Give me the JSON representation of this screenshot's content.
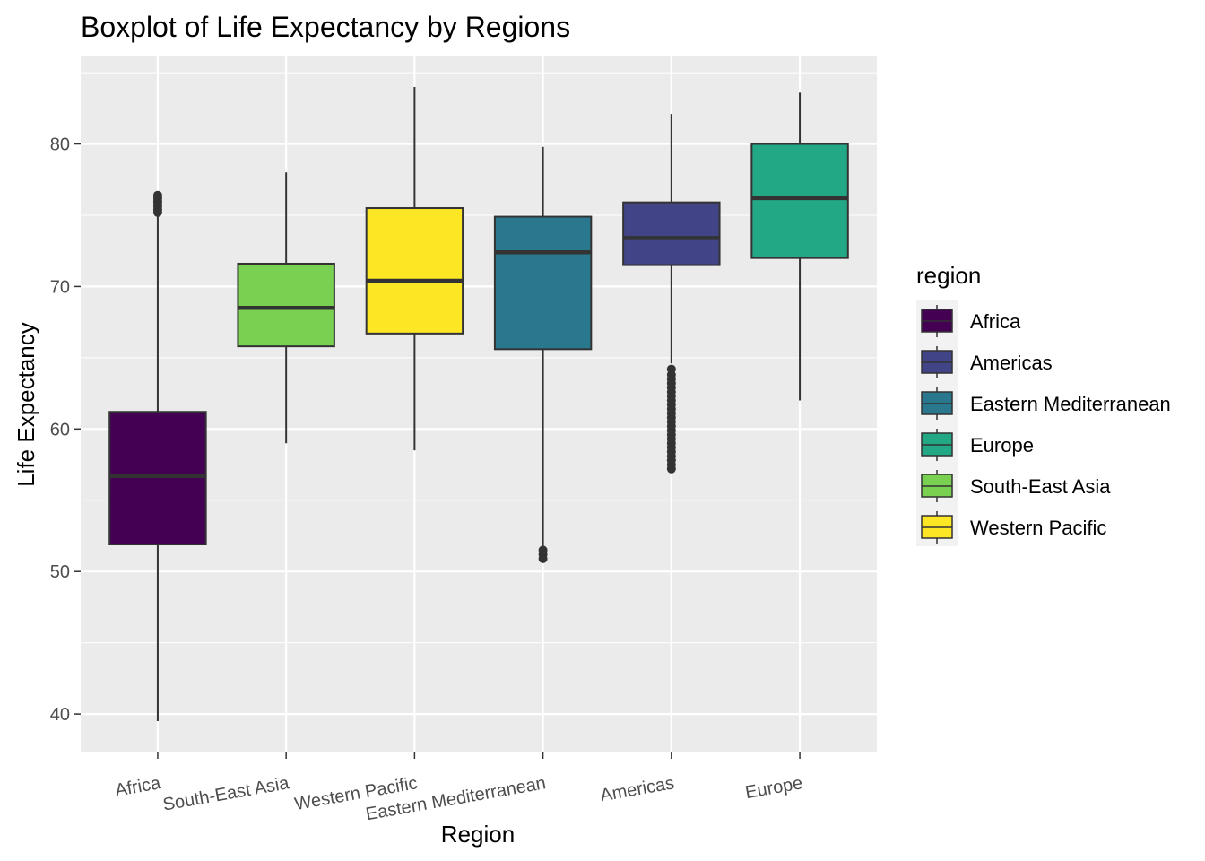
{
  "chart_data": {
    "type": "boxplot",
    "title": "Boxplot of Life Expectancy by Regions",
    "xlabel": "Region",
    "ylabel": "Life Expectancy",
    "ylim": [
      37.3,
      86.2
    ],
    "yticks": [
      40,
      50,
      60,
      70,
      80
    ],
    "grid": true,
    "categories": [
      "Africa",
      "South-East Asia",
      "Western Pacific",
      "Eastern Mediterranean",
      "Americas",
      "Europe"
    ],
    "boxes": [
      {
        "category": "Africa",
        "color": "#440154",
        "min": 39.5,
        "q1": 51.9,
        "median": 56.7,
        "q3": 61.2,
        "max": 75.0,
        "outliers": [
          75.2,
          75.4,
          75.6,
          75.8,
          76.0,
          76.2,
          76.4
        ]
      },
      {
        "category": "South-East Asia",
        "color": "#7AD151",
        "min": 59.0,
        "q1": 65.8,
        "median": 68.5,
        "q3": 71.6,
        "max": 78.0,
        "outliers": []
      },
      {
        "category": "Western Pacific",
        "color": "#FDE725",
        "min": 58.5,
        "q1": 66.7,
        "median": 70.4,
        "q3": 75.5,
        "max": 84.0,
        "outliers": []
      },
      {
        "category": "Eastern Mediterranean",
        "color": "#2A788E",
        "min": 51.6,
        "q1": 65.6,
        "median": 72.4,
        "q3": 74.9,
        "max": 79.8,
        "outliers": [
          50.9,
          51.2,
          51.5
        ]
      },
      {
        "category": "Americas",
        "color": "#414487",
        "min": 64.6,
        "q1": 71.5,
        "median": 73.4,
        "q3": 75.9,
        "max": 82.1,
        "outliers": [
          57.2,
          57.5,
          57.8,
          58.1,
          58.4,
          58.7,
          59.0,
          59.3,
          59.6,
          59.9,
          60.2,
          60.5,
          60.8,
          61.1,
          61.4,
          61.7,
          62.0,
          62.3,
          62.6,
          62.9,
          63.2,
          63.5,
          63.8,
          64.2
        ]
      },
      {
        "category": "Europe",
        "color": "#22A884",
        "min": 62.0,
        "q1": 72.0,
        "median": 76.2,
        "q3": 80.0,
        "max": 83.6,
        "outliers": []
      }
    ],
    "legend": {
      "title": "region",
      "position": "right",
      "items": [
        {
          "label": "Africa",
          "color": "#440154"
        },
        {
          "label": "Americas",
          "color": "#414487"
        },
        {
          "label": "Eastern Mediterranean",
          "color": "#2A788E"
        },
        {
          "label": "Europe",
          "color": "#22A884"
        },
        {
          "label": "South-East Asia",
          "color": "#7AD151"
        },
        {
          "label": "Western Pacific",
          "color": "#FDE725"
        }
      ]
    }
  }
}
